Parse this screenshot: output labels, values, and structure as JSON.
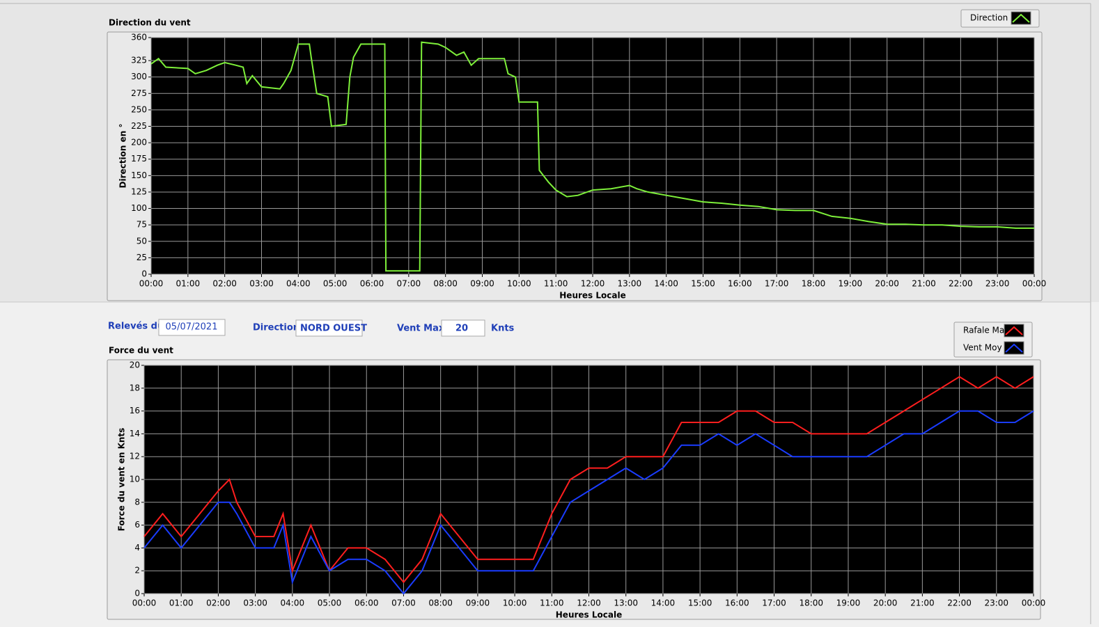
{
  "chart_data": [
    {
      "type": "line",
      "title": "Direction du vent",
      "x_label": "Heures Locale",
      "y_label": "Direction en °",
      "x": [
        0,
        0.2,
        0.4,
        1,
        1.2,
        1.5,
        1.8,
        2,
        2.3,
        2.5,
        2.6,
        2.75,
        3,
        3.5,
        3.6,
        3.8,
        4,
        4.3,
        4.35,
        4.5,
        4.8,
        4.9,
        5.3,
        5.4,
        5.5,
        5.7,
        6,
        6.35,
        6.38,
        7.3,
        7.35,
        7.8,
        8,
        8.3,
        8.5,
        8.7,
        8.9,
        9.6,
        9.7,
        9.9,
        10,
        10.5,
        10.55,
        10.8,
        11,
        11.3,
        11.6,
        12,
        12.5,
        13,
        13.2,
        13.5,
        14,
        14.5,
        15,
        15.5,
        16,
        16.5,
        17,
        17.5,
        18,
        18.5,
        19,
        19.5,
        20,
        20.5,
        21,
        21.5,
        22,
        22.5,
        23,
        23.5,
        24
      ],
      "series": [
        {
          "name": "Direction",
          "color": "#7ef03a",
          "values": [
            320,
            328,
            315,
            313,
            305,
            310,
            318,
            322,
            318,
            315,
            290,
            302,
            285,
            282,
            290,
            310,
            350,
            350,
            330,
            275,
            270,
            225,
            228,
            300,
            330,
            350,
            350,
            350,
            5,
            5,
            353,
            350,
            345,
            333,
            338,
            318,
            328,
            328,
            305,
            300,
            262,
            262,
            158,
            140,
            128,
            118,
            120,
            128,
            130,
            135,
            130,
            125,
            120,
            115,
            110,
            108,
            105,
            103,
            98,
            97,
            97,
            88,
            85,
            80,
            76,
            76,
            75,
            75,
            73,
            72,
            72,
            70,
            70
          ]
        }
      ],
      "xlim": [
        0,
        24
      ],
      "xticks": [
        {
          "value": 0,
          "label": "00:00"
        },
        {
          "value": 1,
          "label": "01:00"
        },
        {
          "value": 2,
          "label": "02:00"
        },
        {
          "value": 3,
          "label": "03:00"
        },
        {
          "value": 4,
          "label": "04:00"
        },
        {
          "value": 5,
          "label": "05:00"
        },
        {
          "value": 6,
          "label": "06:00"
        },
        {
          "value": 7,
          "label": "07:00"
        },
        {
          "value": 8,
          "label": "08:00"
        },
        {
          "value": 9,
          "label": "09:00"
        },
        {
          "value": 10,
          "label": "10:00"
        },
        {
          "value": 11,
          "label": "11:00"
        },
        {
          "value": 12,
          "label": "12:00"
        },
        {
          "value": 13,
          "label": "13:00"
        },
        {
          "value": 14,
          "label": "14:00"
        },
        {
          "value": 15,
          "label": "15:00"
        },
        {
          "value": 16,
          "label": "16:00"
        },
        {
          "value": 17,
          "label": "17:00"
        },
        {
          "value": 18,
          "label": "18:00"
        },
        {
          "value": 19,
          "label": "19:00"
        },
        {
          "value": 20,
          "label": "20:00"
        },
        {
          "value": 21,
          "label": "21:00"
        },
        {
          "value": 22,
          "label": "22:00"
        },
        {
          "value": 23,
          "label": "23:00"
        },
        {
          "value": 24,
          "label": "00:00"
        }
      ],
      "ylim": [
        0,
        360
      ],
      "yticks": [
        0,
        25,
        50,
        75,
        100,
        125,
        150,
        175,
        200,
        225,
        250,
        275,
        300,
        325,
        360
      ],
      "grid": true,
      "legend": "top-right"
    },
    {
      "type": "line",
      "title": "Force du vent",
      "x_label": "Heures Locale",
      "y_label": "Force du vent en Knts",
      "x": [
        0,
        0.5,
        1,
        1.5,
        2,
        2.3,
        2.5,
        3,
        3.5,
        3.75,
        4,
        4.5,
        5,
        5.5,
        6,
        6.5,
        7,
        7.5,
        8,
        8.5,
        9,
        9.5,
        10,
        10.5,
        11,
        11.5,
        12,
        12.5,
        13,
        13.5,
        14,
        14.5,
        15,
        15.5,
        16,
        16.5,
        17,
        17.5,
        18,
        18.5,
        19,
        19.5,
        20,
        20.5,
        21,
        21.5,
        22,
        22.5,
        23,
        23.5,
        24
      ],
      "series": [
        {
          "name": "Rafale Max",
          "color": "#ff1e1e",
          "values": [
            5,
            7,
            5,
            7,
            9,
            10,
            8,
            5,
            5,
            7,
            2,
            6,
            2,
            4,
            4,
            3,
            1,
            3,
            7,
            5,
            3,
            3,
            3,
            3,
            7,
            10,
            11,
            11,
            12,
            12,
            12,
            15,
            15,
            15,
            16,
            16,
            15,
            15,
            14,
            14,
            14,
            14,
            15,
            16,
            17,
            18,
            19,
            18,
            19,
            18,
            19
          ]
        },
        {
          "name": "Vent Moy",
          "color": "#1a3cff",
          "values": [
            4,
            6,
            4,
            6,
            8,
            8,
            7,
            4,
            4,
            6,
            1,
            5,
            2,
            3,
            3,
            2,
            0,
            2,
            6,
            4,
            2,
            2,
            2,
            2,
            5,
            8,
            9,
            10,
            11,
            10,
            11,
            13,
            13,
            14,
            13,
            14,
            13,
            12,
            12,
            12,
            12,
            12,
            13,
            14,
            14,
            15,
            16,
            16,
            15,
            15,
            16
          ]
        }
      ],
      "xlim": [
        0,
        24
      ],
      "xticks": [
        {
          "value": 0,
          "label": "00:00"
        },
        {
          "value": 1,
          "label": "01:00"
        },
        {
          "value": 2,
          "label": "02:00"
        },
        {
          "value": 3,
          "label": "03:00"
        },
        {
          "value": 4,
          "label": "04:00"
        },
        {
          "value": 5,
          "label": "05:00"
        },
        {
          "value": 6,
          "label": "06:00"
        },
        {
          "value": 7,
          "label": "07:00"
        },
        {
          "value": 8,
          "label": "08:00"
        },
        {
          "value": 9,
          "label": "09:00"
        },
        {
          "value": 10,
          "label": "10:00"
        },
        {
          "value": 11,
          "label": "11:00"
        },
        {
          "value": 12,
          "label": "12:00"
        },
        {
          "value": 13,
          "label": "13:00"
        },
        {
          "value": 14,
          "label": "14:00"
        },
        {
          "value": 15,
          "label": "15:00"
        },
        {
          "value": 16,
          "label": "16:00"
        },
        {
          "value": 17,
          "label": "17:00"
        },
        {
          "value": 18,
          "label": "18:00"
        },
        {
          "value": 19,
          "label": "19:00"
        },
        {
          "value": 20,
          "label": "20:00"
        },
        {
          "value": 21,
          "label": "21:00"
        },
        {
          "value": 22,
          "label": "22:00"
        },
        {
          "value": 23,
          "label": "23:00"
        },
        {
          "value": 24,
          "label": "00:00"
        }
      ],
      "ylim": [
        0,
        20
      ],
      "yticks": [
        0,
        2,
        4,
        6,
        8,
        10,
        12,
        14,
        16,
        18,
        20
      ],
      "grid": true,
      "legend": "top-right"
    }
  ],
  "controls": {
    "date_label": "Relevés du",
    "date": "05/07/2021",
    "direction_label": "Direction",
    "direction": "NORD OUEST",
    "vent_max_label": "Vent Max",
    "vent_max": 20,
    "vent_max_unit": "Knts"
  }
}
